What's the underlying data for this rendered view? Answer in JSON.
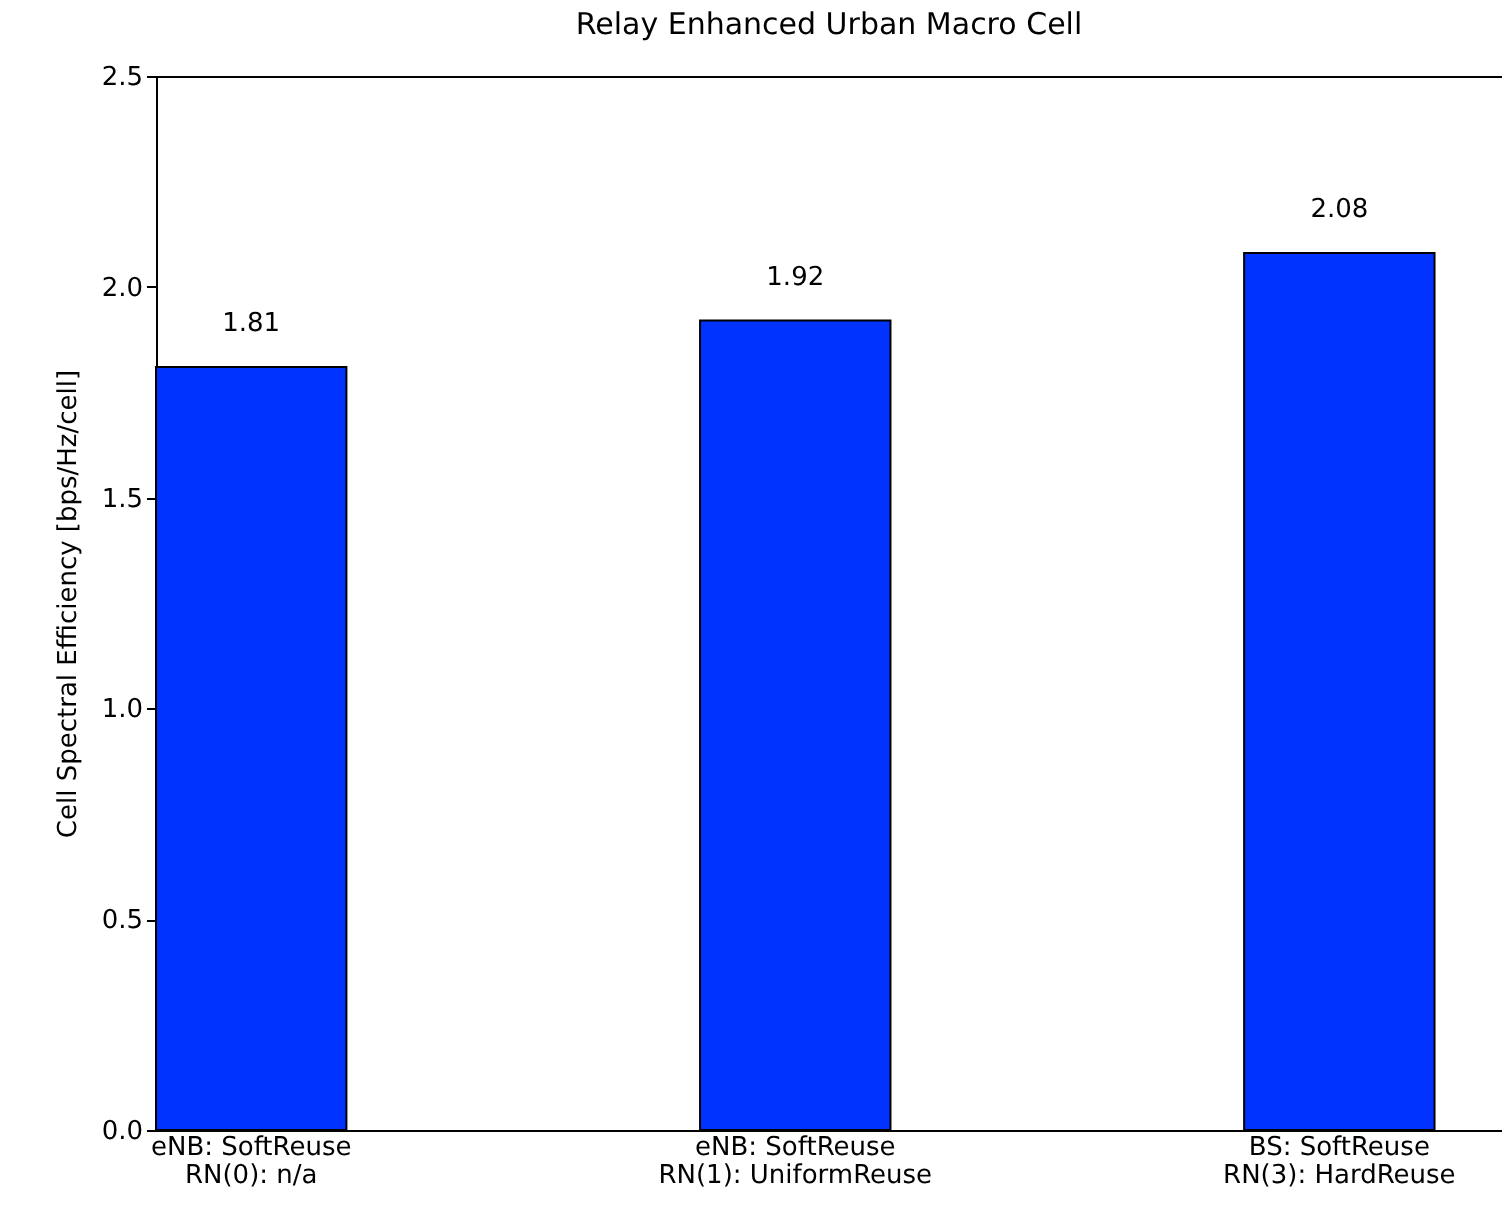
{
  "chart_data": {
    "type": "bar",
    "title": "Relay Enhanced Urban Macro Cell",
    "ylabel": "Cell Spectral Efficiency [bps/Hz/cell]",
    "categories": [
      "eNB: SoftReuse\nRN(0): n/a",
      "eNB: SoftReuse\nRN(1): UniformReuse",
      "BS: SoftReuse\nRN(3): HardReuse"
    ],
    "values": [
      1.81,
      1.92,
      2.08
    ],
    "color": "#0033ff",
    "ylim": [
      0,
      2.5
    ],
    "yticks": [
      {
        "value": 0,
        "label": "0.0"
      },
      {
        "value": 0.5,
        "label": "0.5"
      },
      {
        "value": 1,
        "label": "1.0"
      },
      {
        "value": 1.5,
        "label": "1.5"
      },
      {
        "value": 2,
        "label": "2.0"
      },
      {
        "value": 2.5,
        "label": "2.5"
      }
    ],
    "data_labels": true,
    "grid": false
  }
}
